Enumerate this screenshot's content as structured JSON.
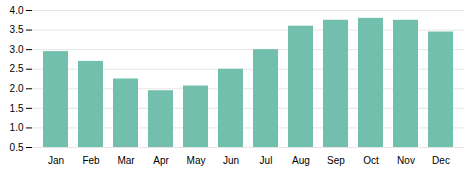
{
  "chart_data": {
    "type": "bar",
    "categories": [
      "Jan",
      "Feb",
      "Mar",
      "Apr",
      "May",
      "Jun",
      "Jul",
      "Aug",
      "Sep",
      "Oct",
      "Nov",
      "Dec"
    ],
    "values": [
      2.95,
      2.7,
      2.25,
      1.95,
      2.07,
      2.5,
      3.0,
      3.6,
      3.75,
      3.8,
      3.75,
      3.45
    ],
    "color": "#72bfad",
    "ylim": [
      0.5,
      4.0
    ],
    "yticks": [
      0.5,
      {
        "value": 1.0,
        "label": "1.0"
      },
      1.5,
      {
        "value": 2.0,
        "label": "2.0"
      },
      2.5,
      {
        "value": 3.0,
        "label": "3.0"
      },
      3.5,
      {
        "value": 4.0,
        "label": "4.0"
      }
    ],
    "grid": true
  }
}
